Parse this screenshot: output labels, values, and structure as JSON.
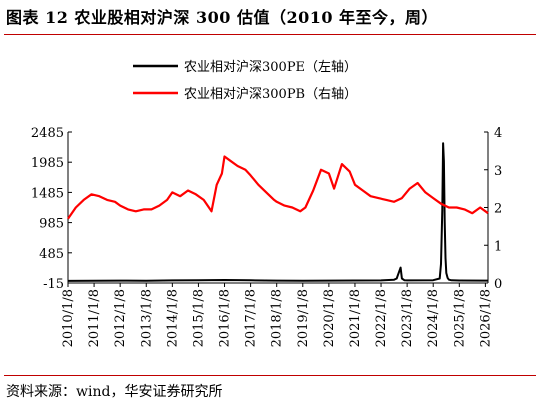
{
  "header": {
    "title": "图表 12 农业股相对沪深 300 估值（2010 年至今，周）"
  },
  "footer": {
    "source": "资料来源：wind，华安证券研究所"
  },
  "colors": {
    "pe": "#000000",
    "pb": "#ff0000",
    "rule": "#c00000"
  },
  "chart_data": {
    "type": "line",
    "legend_position": "top-center",
    "grid": false,
    "x_labels": [
      "2010/1/8",
      "2011/1/8",
      "2012/1/8",
      "2013/1/8",
      "2014/1/8",
      "2015/1/8",
      "2016/1/8",
      "2017/1/8",
      "2018/1/8",
      "2019/1/8",
      "2020/1/8",
      "2021/1/8",
      "2022/1/8",
      "2023/1/8",
      "2024/1/8",
      "2025/1/8",
      "2026/1/8"
    ],
    "xlim": [
      2010.0,
      2026.1
    ],
    "y_left": {
      "ticks": [
        -15,
        485,
        985,
        1485,
        1985,
        2485
      ],
      "lim": [
        -15,
        2485
      ]
    },
    "y_right": {
      "ticks": [
        0,
        1,
        2,
        3,
        4
      ],
      "lim": [
        0,
        4
      ]
    },
    "series": [
      {
        "name": "农业相对沪深300PE（左轴）",
        "axis": "left",
        "color": "#000000",
        "x": [
          2010.0,
          2011.0,
          2012.0,
          2013.0,
          2014.0,
          2015.0,
          2016.0,
          2017.0,
          2018.0,
          2019.0,
          2020.0,
          2021.0,
          2022.0,
          2022.5,
          2022.6,
          2022.65,
          2022.7,
          2022.75,
          2022.8,
          2022.9,
          2023.0,
          2024.0,
          2024.25,
          2024.3,
          2024.35,
          2024.38,
          2024.41,
          2024.44,
          2024.47,
          2024.5,
          2024.55,
          2024.6,
          2024.7,
          2025.0,
          2026.0,
          2026.1
        ],
        "y": [
          20,
          22,
          25,
          23,
          28,
          30,
          35,
          30,
          25,
          22,
          24,
          26,
          28,
          40,
          60,
          120,
          180,
          240,
          60,
          30,
          28,
          32,
          60,
          300,
          1200,
          2300,
          2000,
          1000,
          400,
          150,
          70,
          40,
          30,
          26,
          25,
          25
        ]
      },
      {
        "name": "农业相对沪深300PB（右轴）",
        "axis": "right",
        "color": "#ff0000",
        "x": [
          2010.0,
          2010.3,
          2010.6,
          2010.9,
          2011.2,
          2011.5,
          2011.8,
          2012.0,
          2012.3,
          2012.6,
          2012.9,
          2013.2,
          2013.5,
          2013.8,
          2014.0,
          2014.3,
          2014.6,
          2014.9,
          2015.2,
          2015.5,
          2015.7,
          2015.9,
          2016.0,
          2016.2,
          2016.5,
          2016.8,
          2017.0,
          2017.3,
          2017.6,
          2017.9,
          2018.0,
          2018.3,
          2018.6,
          2018.9,
          2019.1,
          2019.4,
          2019.7,
          2020.0,
          2020.2,
          2020.5,
          2020.8,
          2021.0,
          2021.3,
          2021.6,
          2021.9,
          2022.2,
          2022.5,
          2022.8,
          2023.1,
          2023.4,
          2023.7,
          2024.0,
          2024.3,
          2024.6,
          2024.9,
          2025.2,
          2025.5,
          2025.8,
          2026.1
        ],
        "y": [
          1.7,
          2.0,
          2.2,
          2.35,
          2.3,
          2.2,
          2.15,
          2.05,
          1.95,
          1.9,
          1.95,
          1.95,
          2.05,
          2.2,
          2.4,
          2.3,
          2.45,
          2.35,
          2.2,
          1.9,
          2.6,
          2.9,
          3.35,
          3.25,
          3.1,
          3.0,
          2.85,
          2.6,
          2.4,
          2.2,
          2.15,
          2.05,
          2.0,
          1.9,
          2.0,
          2.45,
          3.0,
          2.9,
          2.5,
          3.15,
          2.95,
          2.6,
          2.45,
          2.3,
          2.25,
          2.2,
          2.15,
          2.25,
          2.5,
          2.65,
          2.4,
          2.25,
          2.1,
          2.0,
          2.0,
          1.95,
          1.85,
          2.0,
          1.85
        ]
      }
    ]
  }
}
